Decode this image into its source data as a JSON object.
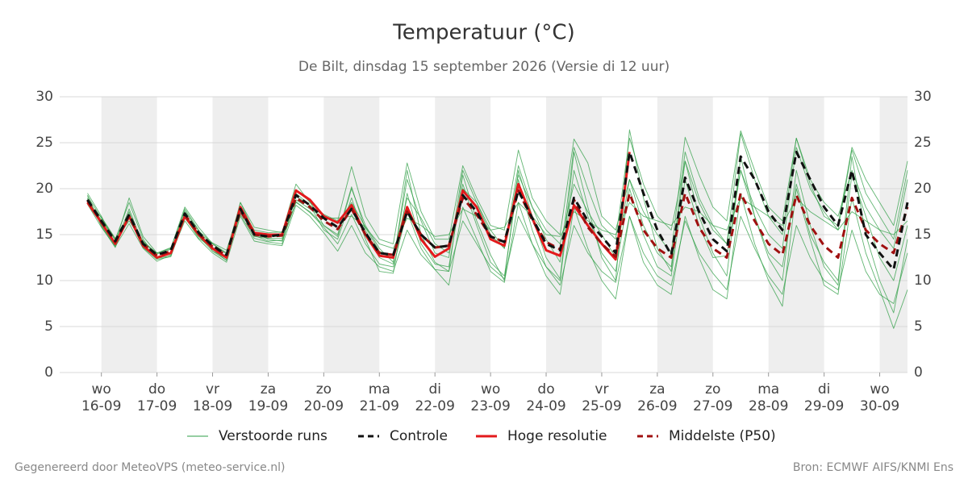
{
  "chart_data": {
    "type": "line",
    "title": "Temperatuur (°C)",
    "subtitle": "De Bilt, dinsdag 15 september 2026 (Versie di 12 uur)",
    "x": [
      -0.25,
      0,
      0.25,
      0.5,
      0.75,
      1,
      1.25,
      1.5,
      1.75,
      2,
      2.25,
      2.5,
      2.75,
      3,
      3.25,
      3.5,
      3.75,
      4,
      4.25,
      4.5,
      4.75,
      5,
      5.25,
      5.5,
      5.75,
      6,
      6.25,
      6.5,
      6.75,
      7,
      7.25,
      7.5,
      7.75,
      8,
      8.25,
      8.5,
      8.75,
      9,
      9.25,
      9.5,
      9.75,
      10,
      10.25,
      10.5,
      10.75,
      11,
      11.25,
      11.5,
      11.75,
      12,
      12.25,
      12.5,
      12.75,
      13,
      13.25,
      13.5,
      13.75,
      14,
      14.25,
      14.5
    ],
    "xlim": [
      -0.75,
      14.5
    ],
    "xticks": [
      {
        "value": 0,
        "day": "wo",
        "label": "16-09"
      },
      {
        "value": 1,
        "day": "do",
        "label": "17-09"
      },
      {
        "value": 2,
        "day": "vr",
        "label": "18-09"
      },
      {
        "value": 3,
        "day": "za",
        "label": "19-09"
      },
      {
        "value": 4,
        "day": "zo",
        "label": "20-09"
      },
      {
        "value": 5,
        "day": "ma",
        "label": "21-09"
      },
      {
        "value": 6,
        "day": "di",
        "label": "22-09"
      },
      {
        "value": 7,
        "day": "wo",
        "label": "23-09"
      },
      {
        "value": 8,
        "day": "do",
        "label": "24-09"
      },
      {
        "value": 9,
        "day": "vr",
        "label": "25-09"
      },
      {
        "value": 10,
        "day": "za",
        "label": "26-09"
      },
      {
        "value": 11,
        "day": "zo",
        "label": "27-09"
      },
      {
        "value": 12,
        "day": "ma",
        "label": "28-09"
      },
      {
        "value": 13,
        "day": "di",
        "label": "29-09"
      },
      {
        "value": 14,
        "day": "wo",
        "label": "30-09"
      }
    ],
    "ylim": [
      0,
      30
    ],
    "yticks": [
      0,
      5,
      10,
      15,
      20,
      25,
      30
    ],
    "mirror_y_axis": true,
    "grid": true,
    "day_shading": true,
    "legend": "bottom",
    "series": [
      {
        "name": "Verstoorde runs",
        "color": "#2e9e44",
        "style": "thin",
        "values": [
          [
            19.2,
            16.8,
            14.5,
            18.5,
            14.5,
            12.4,
            13.0,
            17.8,
            15.5,
            13.2,
            12.2,
            18.5,
            15.3,
            14.5,
            14.3,
            18.5,
            17.5,
            16.0,
            14.8,
            20.0,
            16.0,
            13.5,
            12.0,
            21.0,
            16.5,
            13.0,
            12.5,
            22.0,
            18.5,
            15.0,
            13.5,
            22.5,
            18.0,
            14.5,
            12.0,
            24.5,
            20.0,
            16.0,
            14.5,
            25.5,
            20.5,
            17.0,
            15.5,
            23.0,
            18.5,
            15.5,
            14.0,
            26.0,
            21.0,
            17.0,
            15.0,
            25.5,
            21.0,
            18.5,
            17.0,
            22.0,
            18.0,
            15.5,
            13.5,
            21.0
          ],
          [
            18.3,
            15.8,
            13.7,
            16.2,
            13.5,
            12.1,
            12.8,
            16.5,
            14.5,
            13.0,
            12.0,
            17.0,
            14.3,
            14.0,
            13.8,
            18.2,
            17.0,
            15.2,
            13.2,
            16.0,
            13.0,
            11.5,
            11.0,
            15.5,
            12.8,
            11.2,
            11.0,
            16.5,
            14.0,
            11.5,
            10.2,
            17.0,
            14.0,
            11.5,
            9.5,
            16.0,
            13.0,
            11.0,
            9.8,
            17.0,
            13.0,
            10.5,
            9.5,
            16.5,
            13.0,
            10.8,
            9.0,
            17.0,
            13.5,
            10.5,
            8.5,
            16.0,
            12.5,
            10.0,
            9.0,
            15.5,
            11.0,
            8.5,
            7.5,
            13.0
          ],
          [
            19.5,
            17.0,
            14.0,
            19.0,
            14.8,
            13.0,
            13.5,
            18.0,
            15.8,
            14.0,
            13.0,
            18.5,
            15.8,
            15.5,
            15.2,
            20.5,
            18.5,
            17.2,
            16.5,
            22.4,
            17.0,
            14.5,
            14.0,
            22.8,
            17.5,
            14.5,
            14.5,
            22.5,
            19.0,
            16.0,
            15.5,
            24.2,
            19.0,
            16.5,
            15.0,
            25.4,
            22.8,
            17.0,
            15.5,
            21.0,
            17.5,
            15.0,
            13.0,
            25.6,
            21.5,
            18.0,
            16.5,
            26.3,
            22.0,
            18.0,
            16.5,
            25.5,
            20.5,
            17.0,
            16.0,
            24.5,
            21.0,
            18.5,
            16.0,
            23.0
          ],
          [
            18.9,
            16.0,
            13.8,
            17.5,
            13.6,
            12.3,
            12.6,
            16.8,
            14.8,
            13.2,
            12.5,
            17.2,
            14.6,
            14.2,
            14.0,
            19.5,
            18.2,
            15.5,
            14.5,
            19.0,
            14.5,
            11.0,
            10.8,
            19.5,
            14.0,
            11.8,
            11.5,
            20.5,
            16.0,
            12.0,
            10.5,
            21.0,
            15.5,
            11.5,
            10.0,
            22.0,
            17.0,
            13.0,
            11.0,
            20.0,
            15.0,
            11.5,
            10.5,
            21.0,
            16.0,
            12.5,
            12.7,
            22.0,
            17.0,
            13.0,
            11.5,
            20.5,
            15.0,
            12.0,
            10.0,
            21.5,
            17.0,
            12.5,
            10.0,
            16.0
          ],
          [
            18.6,
            16.6,
            14.4,
            16.5,
            14.2,
            13.0,
            13.6,
            17.6,
            15.4,
            14.1,
            13.3,
            18.0,
            15.5,
            15.2,
            15.3,
            18.8,
            17.8,
            16.8,
            16.8,
            17.0,
            15.8,
            14.0,
            13.5,
            16.8,
            16.0,
            14.8,
            15.0,
            17.8,
            17.0,
            15.5,
            15.8,
            18.5,
            17.0,
            15.0,
            14.8,
            17.5,
            16.5,
            15.5,
            15.0,
            18.5,
            17.0,
            16.5,
            16.0,
            18.0,
            17.5,
            16.0,
            15.5,
            19.0,
            18.0,
            17.0,
            16.0,
            19.0,
            17.5,
            16.5,
            15.5,
            17.5,
            16.5,
            15.5,
            15.0,
            16.5
          ],
          [
            19.0,
            16.2,
            13.9,
            17.8,
            13.9,
            12.6,
            12.9,
            17.4,
            15.0,
            13.4,
            12.2,
            17.8,
            14.8,
            14.6,
            14.6,
            19.8,
            18.6,
            16.0,
            15.0,
            20.2,
            15.5,
            12.5,
            11.8,
            22.0,
            15.0,
            12.0,
            11.0,
            21.5,
            16.5,
            12.8,
            10.0,
            22.0,
            17.0,
            12.5,
            10.2,
            24.0,
            18.0,
            12.5,
            10.0,
            26.4,
            19.0,
            13.5,
            11.0,
            23.0,
            17.0,
            13.0,
            10.5,
            23.5,
            17.0,
            12.5,
            10.0,
            22.0,
            16.0,
            11.5,
            9.5,
            23.5,
            15.0,
            10.0,
            6.5,
            14.5
          ],
          [
            18.4,
            16.9,
            14.6,
            16.8,
            14.3,
            12.9,
            13.4,
            16.9,
            15.2,
            14.0,
            12.9,
            17.4,
            15.1,
            15.0,
            15.1,
            19.2,
            18.2,
            17.0,
            16.2,
            18.5,
            15.8,
            13.2,
            12.4,
            19.0,
            16.8,
            14.0,
            13.0,
            20.0,
            18.5,
            15.5,
            13.5,
            21.5,
            18.0,
            15.5,
            14.0,
            20.5,
            17.5,
            15.0,
            12.5,
            21.0,
            16.0,
            13.0,
            11.5,
            24.0,
            19.0,
            16.0,
            14.0,
            22.0,
            18.0,
            15.0,
            13.5,
            24.5,
            20.0,
            17.5,
            15.5,
            24.2,
            19.5,
            17.0,
            14.5,
            22.0
          ],
          [
            19.3,
            15.9,
            13.6,
            17.3,
            13.7,
            12.4,
            12.7,
            17.0,
            14.6,
            13.6,
            12.6,
            17.9,
            14.9,
            14.3,
            14.4,
            18.6,
            17.4,
            15.8,
            14.0,
            17.2,
            14.0,
            11.8,
            11.5,
            17.5,
            13.5,
            11.2,
            9.5,
            18.0,
            14.5,
            11.0,
            9.8,
            18.5,
            14.0,
            10.5,
            8.5,
            18.0,
            13.5,
            10.0,
            8.0,
            17.0,
            12.0,
            9.5,
            8.5,
            17.0,
            12.5,
            9.0,
            8.0,
            19.5,
            14.0,
            10.0,
            7.2,
            20.0,
            14.5,
            9.5,
            8.5,
            19.0,
            13.0,
            9.0,
            4.8,
            9.0
          ]
        ]
      },
      {
        "name": "Controle",
        "color": "#111111",
        "style": "dashed",
        "values": [
          18.8,
          16.5,
          14.3,
          17.2,
          14.0,
          12.8,
          13.3,
          17.3,
          15.2,
          13.8,
          12.8,
          17.8,
          15.0,
          14.8,
          15.0,
          19.3,
          18.2,
          16.8,
          15.8,
          17.8,
          15.2,
          13.0,
          12.8,
          17.5,
          15.0,
          13.6,
          13.8,
          19.3,
          17.5,
          14.8,
          14.2,
          19.8,
          16.8,
          14.0,
          13.3,
          19.0,
          16.5,
          14.8,
          13.0,
          24.0,
          19.5,
          15.5,
          12.8,
          21.2,
          17.5,
          14.5,
          13.2,
          23.5,
          21.0,
          17.5,
          15.5,
          24.0,
          21.0,
          18.0,
          16.0,
          22.0,
          15.0,
          13.0,
          11.2,
          18.5
        ]
      },
      {
        "name": "Hoge resolutie",
        "color": "#e31a1c",
        "style": "solid",
        "values": [
          18.5,
          16.3,
          14.0,
          17.0,
          13.8,
          12.5,
          13.0,
          17.0,
          15.0,
          13.5,
          12.5,
          18.0,
          15.2,
          15.0,
          15.0,
          19.8,
          18.8,
          17.0,
          16.3,
          18.2,
          15.0,
          12.7,
          12.5,
          18.0,
          14.5,
          12.6,
          13.5,
          19.8,
          18.0,
          14.5,
          13.8,
          20.5,
          16.8,
          13.3,
          12.7,
          18.2,
          16.0,
          14.0,
          12.3,
          24.0,
          null,
          null,
          null,
          null,
          null,
          null,
          null,
          null,
          null,
          null,
          null,
          null,
          null,
          null,
          null,
          null,
          null,
          null,
          null,
          null
        ]
      },
      {
        "name": "Middelste (P50)",
        "color": "#a01010",
        "style": "dashed",
        "values": [
          18.7,
          16.4,
          14.2,
          17.0,
          14.0,
          12.7,
          13.2,
          17.2,
          15.1,
          13.7,
          12.7,
          17.6,
          15.0,
          14.8,
          14.9,
          19.0,
          18.0,
          16.5,
          15.6,
          17.8,
          15.0,
          13.0,
          12.8,
          17.5,
          15.0,
          13.6,
          13.8,
          19.0,
          17.2,
          14.8,
          14.2,
          19.8,
          16.6,
          14.2,
          13.4,
          18.8,
          15.8,
          14.0,
          12.6,
          19.5,
          15.5,
          13.5,
          12.5,
          19.5,
          15.8,
          13.5,
          12.5,
          19.5,
          16.5,
          14.0,
          12.8,
          19.3,
          16.0,
          13.8,
          12.5,
          19.0,
          15.5,
          14.0,
          13.0,
          18.0
        ]
      }
    ]
  },
  "footer": {
    "left": "Gegenereerd door MeteoVPS (meteo-service.nl)",
    "right": "Bron: ECMWF AIFS/KNMI Ens"
  }
}
